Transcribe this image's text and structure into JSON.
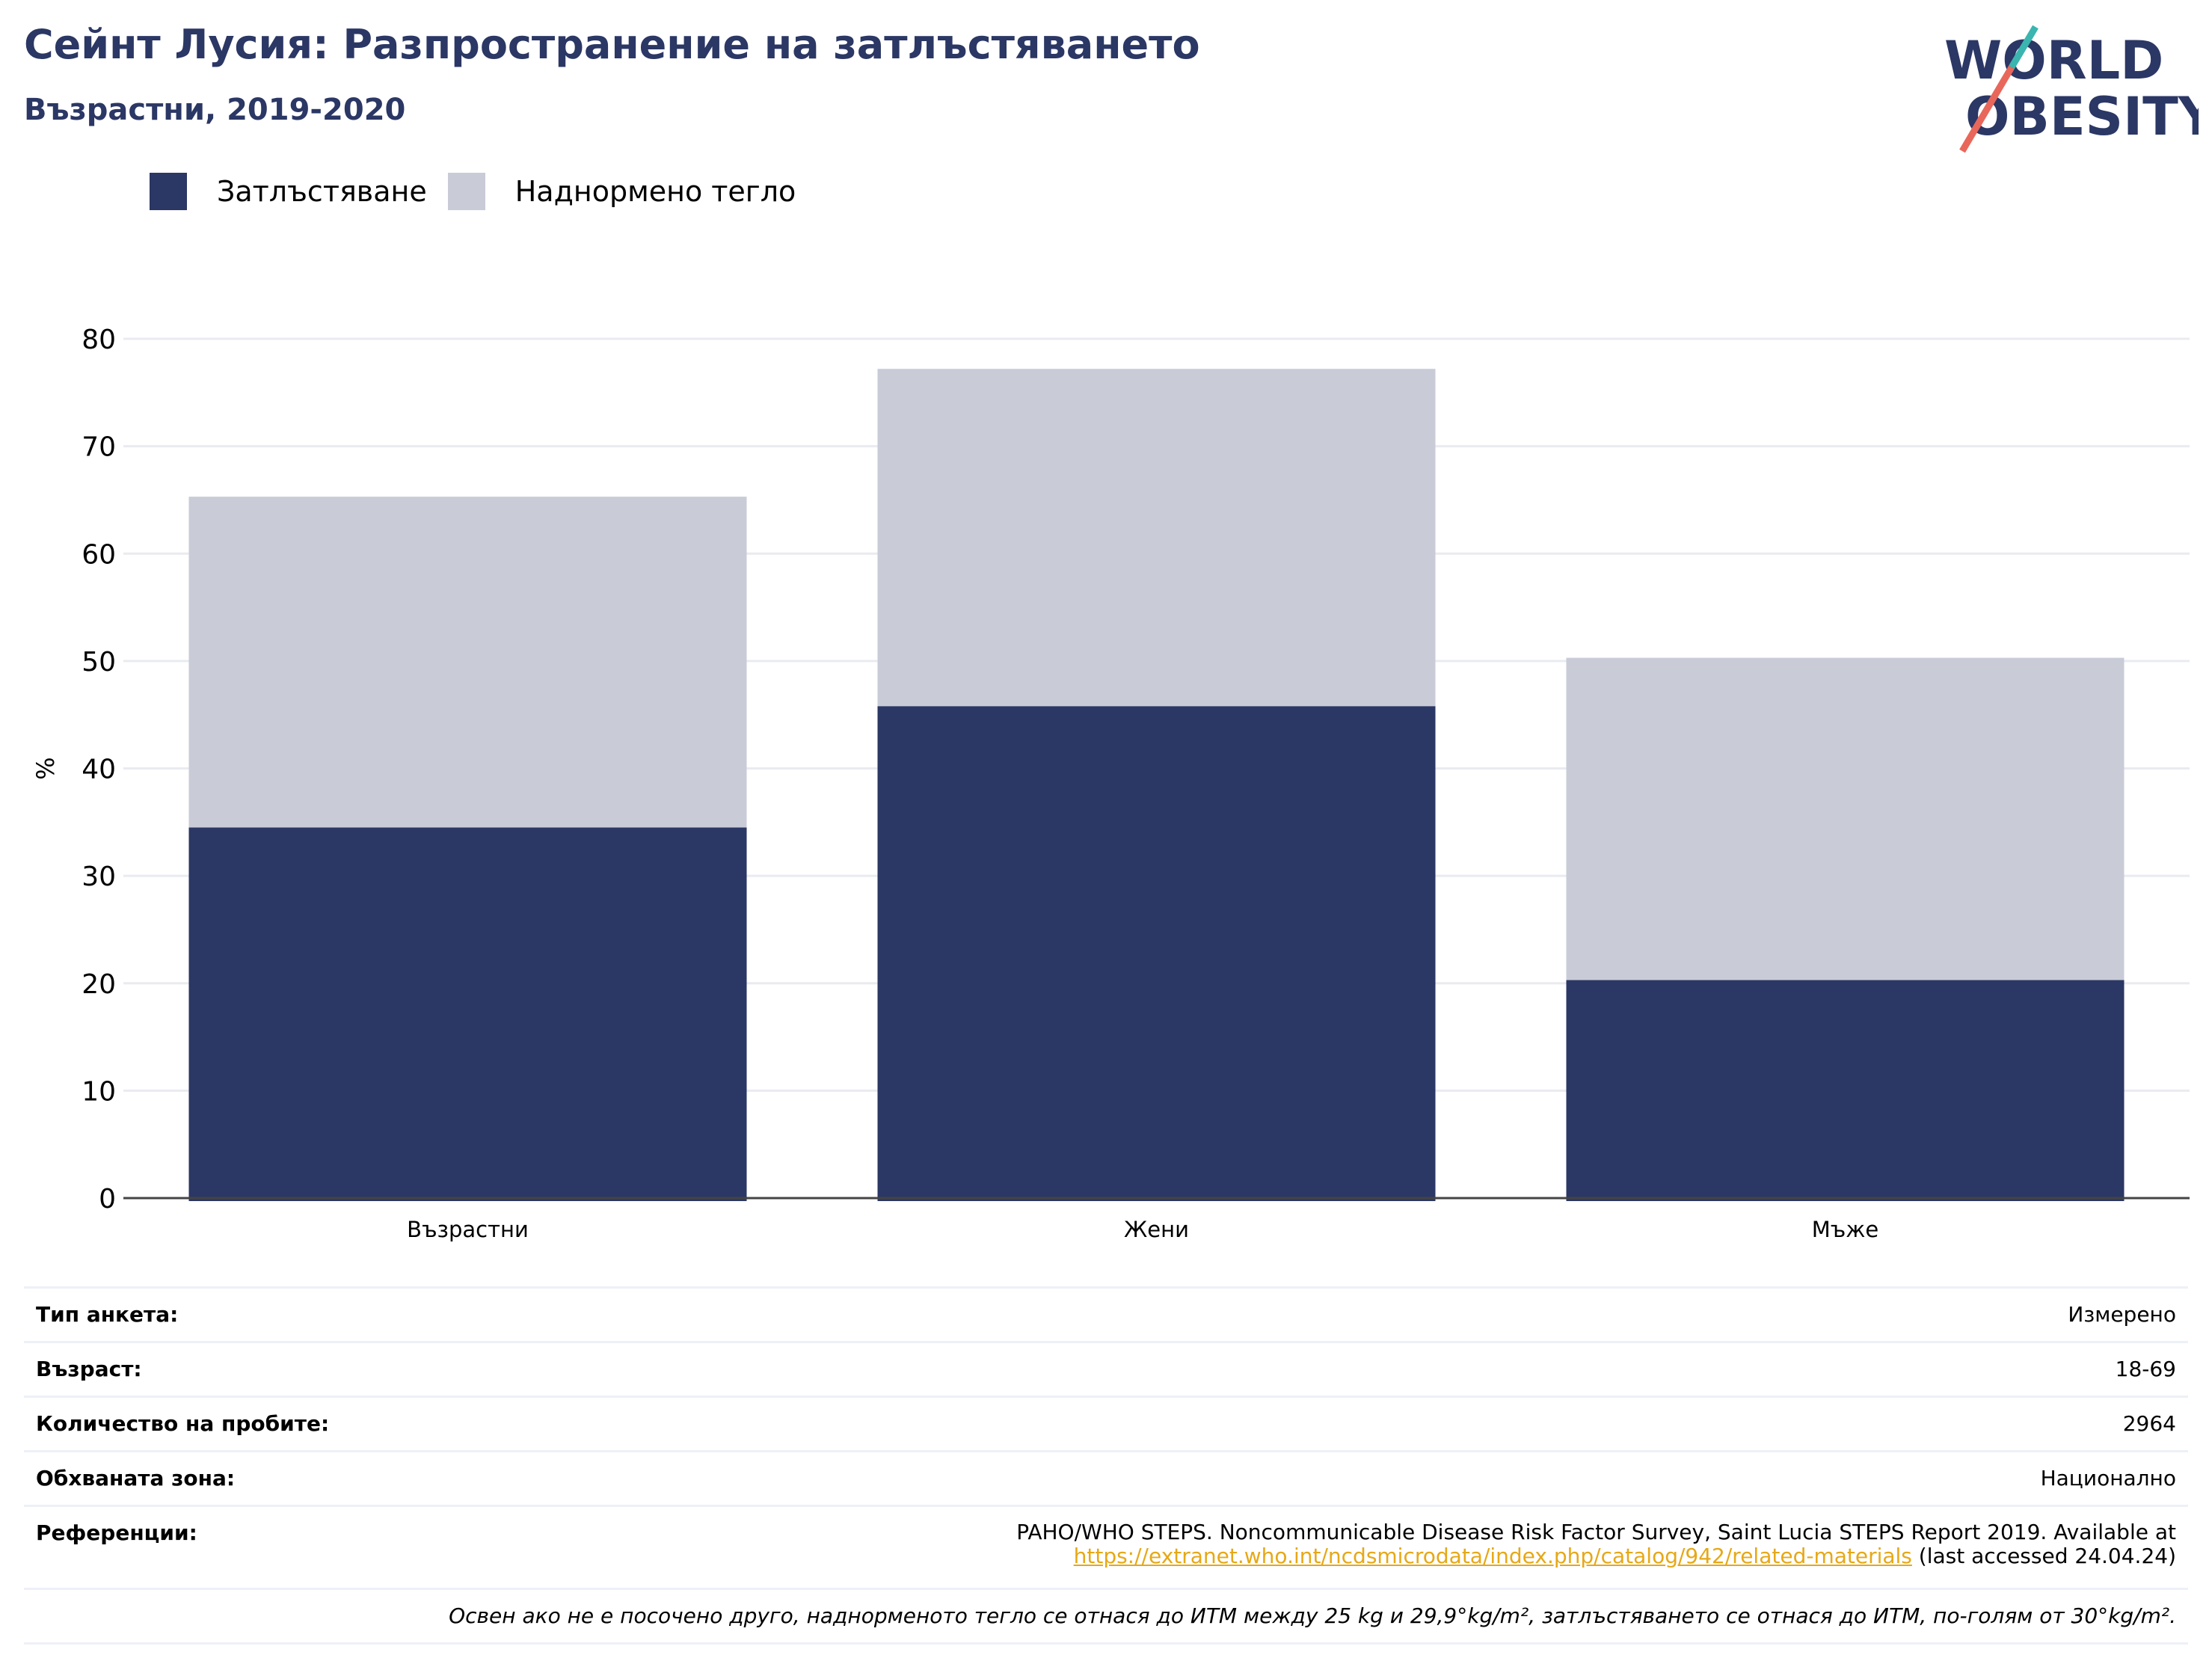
{
  "header": {
    "title": "Сейнт Лусия: Разпространение на затлъстяването",
    "subtitle": "Възрастни, 2019-2020"
  },
  "logo": {
    "line1": "WORLD",
    "line2": "OBESITY"
  },
  "colors": {
    "obesity": "#2b3764",
    "overweight": "#c9cbd7",
    "accent_red": "#e8675a",
    "accent_teal": "#3ab5b0",
    "link": "#e6a817"
  },
  "chart_data": {
    "type": "bar",
    "stacked": true,
    "categories": [
      "Възрастни",
      "Жени",
      "Мъже"
    ],
    "series": [
      {
        "name": "Затлъстяване",
        "values": [
          34.5,
          45.8,
          20.3
        ],
        "color": "#2b3764"
      },
      {
        "name": "Наднормено тегло",
        "values": [
          30.8,
          31.4,
          30.0
        ],
        "color": "#c9cbd7"
      }
    ],
    "ylabel": "%",
    "xlabel": "",
    "ylim": [
      0,
      80
    ],
    "yticks": [
      "0",
      "10",
      "20",
      "30",
      "40",
      "50",
      "60",
      "70",
      "80"
    ],
    "grid": true,
    "legend_position": "top-left"
  },
  "meta": {
    "survey_type_label": "Тип анкета:",
    "survey_type_value": "Измерено",
    "age_label": "Възраст:",
    "age_value": "18-69",
    "sample_label": "Количество на пробите:",
    "sample_value": "2964",
    "area_label": "Обхваната зона:",
    "area_value": "Национално",
    "refs_label": "Референции:",
    "refs_line1": "PAHO/WHO STEPS. Noncommunicable Disease Risk Factor Survey, Saint Lucia STEPS Report 2019. Available at",
    "refs_link": "https://extranet.who.int/ncdsmicrodata/index.php/catalog/942/related-materials",
    "refs_suffix": " (last accessed 24.04.24)",
    "footnote": "Освен ако не е посочено друго, наднорменото тегло се отнася до ИТМ между 25 kg и 29,9°kg/m², затлъстяването се отнася до ИТМ, по-голям от 30°kg/m²."
  }
}
